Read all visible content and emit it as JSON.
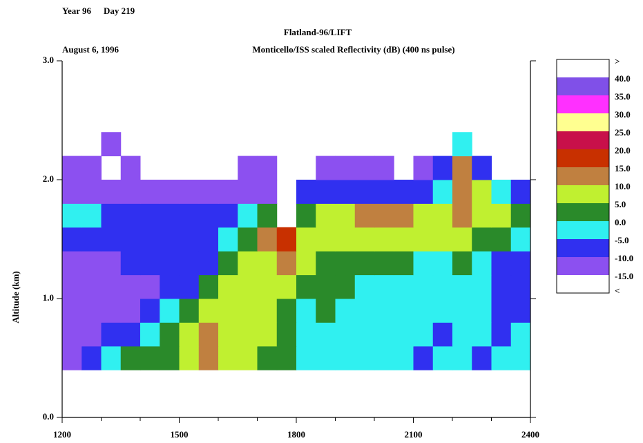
{
  "chart_data": {
    "type": "heatmap",
    "year_label": "Year 96",
    "day_label": "Day 219",
    "title": "Flatland-96/LIFT",
    "date": "August 6, 1996",
    "subtitle": "Monticello/ISS scaled Reflectivity (dB) (400 ns pulse)",
    "y_label": "Altitude (km)",
    "xlim": [
      1200,
      2400
    ],
    "xticks": [
      1200,
      1500,
      1800,
      2100,
      2400
    ],
    "xminorticks": [
      1300,
      1400,
      1600,
      1700,
      1900,
      2000,
      2200,
      2300
    ],
    "ylim": [
      0,
      3
    ],
    "yticks": [
      {
        "value": 0,
        "label": "0.0"
      },
      {
        "value": 1,
        "label": "1.0"
      },
      {
        "value": 2,
        "label": "2.0"
      },
      {
        "value": 3,
        "label": "3.0"
      }
    ],
    "x_bins": [
      1200,
      1230,
      1300,
      1330,
      1400,
      1430,
      1500,
      1530,
      1600,
      1630,
      1700,
      1730,
      1800,
      1830,
      1900,
      1930,
      2000,
      2030,
      2100,
      2130,
      2200,
      2230,
      2300,
      2330,
      2400
    ],
    "y_bins": [
      0.4,
      0.6,
      0.8,
      1,
      1.2,
      1.4,
      1.6,
      1.8,
      2,
      2.2,
      2.4
    ],
    "values": [
      [
        -12,
        -8,
        -3,
        2,
        3,
        4,
        7,
        12,
        8,
        6,
        4,
        2,
        -2,
        -4,
        -3,
        -5,
        -4,
        -3,
        -6,
        -5,
        -4,
        -6,
        -5,
        -3
      ],
      [
        -12,
        -12,
        -10,
        -8,
        -3,
        3,
        8,
        12,
        7,
        6,
        5,
        3,
        -2,
        -3,
        -2,
        -4,
        -3,
        -5,
        -5,
        -6,
        -4,
        -5,
        -6,
        -4
      ],
      [
        -12,
        -13,
        -12,
        -12,
        -10,
        -5,
        2,
        7,
        8,
        7,
        6,
        4,
        -1,
        0,
        -2,
        -3,
        -3,
        -4,
        -4,
        -5,
        -3,
        -4,
        -8,
        -6
      ],
      [
        -12,
        -13,
        -12,
        -12,
        -11,
        -10,
        -8,
        3,
        7,
        7,
        8,
        6,
        2,
        1,
        0,
        -1,
        -2,
        -3,
        -3,
        -4,
        -2,
        -3,
        -8,
        -7
      ],
      [
        -11,
        -12,
        -11,
        -10,
        -9,
        -9,
        -8,
        -6,
        4,
        7,
        9,
        13,
        6,
        3,
        2,
        2,
        1,
        0,
        -1,
        -2,
        0,
        -2,
        -6,
        -7
      ],
      [
        -8,
        -8,
        -10,
        -10,
        -8,
        -8,
        -8,
        -7,
        -5,
        4,
        12,
        16,
        8,
        7,
        7,
        8,
        8,
        6,
        5,
        6,
        6,
        4,
        2,
        -3
      ],
      [
        -2,
        -4,
        -6,
        -8,
        -7,
        -7,
        -8,
        -7,
        -7,
        -3,
        3,
        null,
        3,
        6,
        9,
        11,
        14,
        10,
        8,
        9,
        12,
        8,
        6,
        3
      ],
      [
        -12,
        -12,
        -12,
        -12,
        -13,
        -12,
        -12,
        -13,
        -12,
        -11,
        -11,
        null,
        -9,
        -8,
        -8,
        -9,
        -8,
        -9,
        -6,
        -3,
        13,
        8,
        -3,
        -6
      ],
      [
        -12,
        -12,
        null,
        -13,
        null,
        null,
        null,
        null,
        null,
        -12,
        -13,
        null,
        null,
        -12,
        -13,
        -12,
        -12,
        null,
        -12,
        -10,
        14,
        -8,
        null,
        null
      ],
      [
        null,
        null,
        -13,
        null,
        null,
        null,
        null,
        null,
        null,
        null,
        null,
        null,
        null,
        null,
        null,
        null,
        null,
        null,
        null,
        null,
        -5,
        null,
        null,
        null
      ]
    ],
    "colorbar": {
      "levels": [
        {
          "value": -15,
          "label": "-15.0"
        },
        {
          "value": -10,
          "label": "-10.0"
        },
        {
          "value": -5,
          "label": "-5.0"
        },
        {
          "value": 0,
          "label": "0.0"
        },
        {
          "value": 5,
          "label": "5.0"
        },
        {
          "value": 10,
          "label": "10.0"
        },
        {
          "value": 15,
          "label": "15.0"
        },
        {
          "value": 20,
          "label": "20.0"
        },
        {
          "value": 25,
          "label": "25.0"
        },
        {
          "value": 30,
          "label": "30.0"
        },
        {
          "value": 35,
          "label": "35.0"
        },
        {
          "value": 40,
          "label": "40.0"
        }
      ],
      "colors": [
        "#8c50f0",
        "#3030f0",
        "#30f0f0",
        "#2a8a2a",
        "#c0f030",
        "#c08040",
        "#c83000",
        "#c8104a",
        "#ffff90",
        "#ff30ff",
        "#8050e8"
      ],
      "under_label": "<",
      "over_label": ">",
      "under_color": "#ffffff",
      "over_color": "#ffffff"
    }
  }
}
